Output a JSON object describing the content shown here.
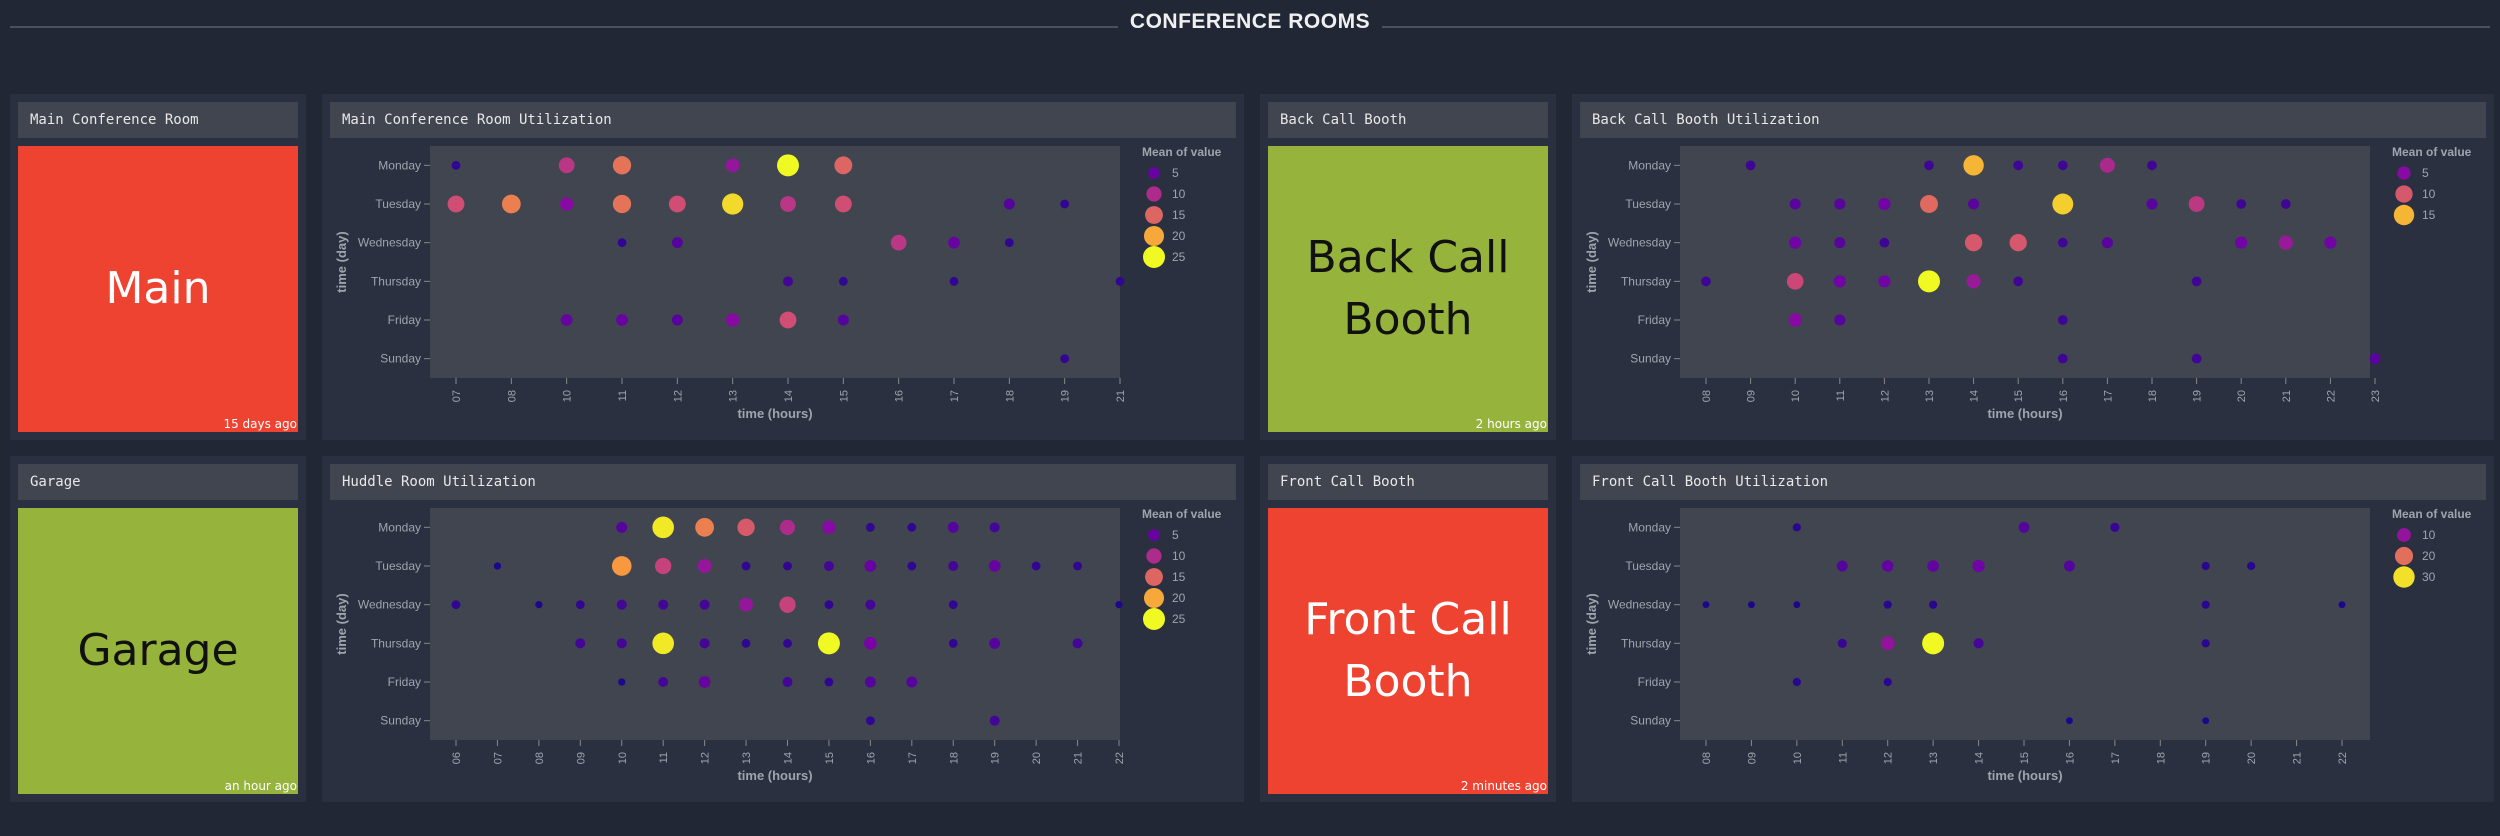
{
  "dashboard": {
    "section_title": "CONFERENCE ROOMS"
  },
  "rooms": [
    {
      "key": "main",
      "title": "Main Conference Room",
      "text_lines": [
        "Main"
      ],
      "updated": "15 days ago",
      "status_color": "#ef4331",
      "text_color": "#ffffff"
    },
    {
      "key": "back",
      "title": "Back Call Booth",
      "text_lines": [
        "Back Call",
        "Booth"
      ],
      "updated": "2 hours ago",
      "status_color": "#96b33c",
      "text_color": "#111111"
    },
    {
      "key": "garage",
      "title": "Garage",
      "text_lines": [
        "Garage"
      ],
      "updated": "an hour ago",
      "status_color": "#96b33c",
      "text_color": "#111111"
    },
    {
      "key": "front",
      "title": "Front Call Booth",
      "text_lines": [
        "Front Call",
        "Booth"
      ],
      "updated": "2 minutes ago",
      "status_color": "#ef4331",
      "text_color": "#ffffff"
    }
  ],
  "chart_data": [
    {
      "type": "scatter",
      "title": "Main Conference Room Utilization",
      "xlabel": "time (hours)",
      "ylabel": "time (day)",
      "x_ticks": [
        "07",
        "08",
        "10",
        "11",
        "12",
        "13",
        "14",
        "15",
        "16",
        "17",
        "18",
        "19",
        "21"
      ],
      "y_ticks": [
        "Monday",
        "Tuesday",
        "Wednesday",
        "Thursday",
        "Friday",
        "Sunday"
      ],
      "legend": {
        "title": "Mean of value",
        "entries": [
          5,
          10,
          15,
          20,
          25
        ],
        "placement": "right"
      },
      "vmax": 25,
      "points": [
        [
          "07",
          "Monday",
          2
        ],
        [
          "10",
          "Monday",
          11
        ],
        [
          "11",
          "Monday",
          16
        ],
        [
          "13",
          "Monday",
          8
        ],
        [
          "14",
          "Monday",
          25
        ],
        [
          "15",
          "Monday",
          15
        ],
        [
          "07",
          "Tuesday",
          13
        ],
        [
          "08",
          "Tuesday",
          17
        ],
        [
          "10",
          "Tuesday",
          7
        ],
        [
          "11",
          "Tuesday",
          16
        ],
        [
          "12",
          "Tuesday",
          13
        ],
        [
          "13",
          "Tuesday",
          23
        ],
        [
          "14",
          "Tuesday",
          11
        ],
        [
          "15",
          "Tuesday",
          13
        ],
        [
          "18",
          "Tuesday",
          4
        ],
        [
          "19",
          "Tuesday",
          2
        ],
        [
          "11",
          "Wednesday",
          2
        ],
        [
          "12",
          "Wednesday",
          4
        ],
        [
          "16",
          "Wednesday",
          11
        ],
        [
          "17",
          "Wednesday",
          5
        ],
        [
          "18",
          "Wednesday",
          2
        ],
        [
          "14",
          "Thursday",
          3
        ],
        [
          "15",
          "Thursday",
          2
        ],
        [
          "17",
          "Thursday",
          2
        ],
        [
          "21",
          "Thursday",
          2
        ],
        [
          "10",
          "Friday",
          5
        ],
        [
          "11",
          "Friday",
          5
        ],
        [
          "12",
          "Friday",
          4
        ],
        [
          "13",
          "Friday",
          7
        ],
        [
          "14",
          "Friday",
          13
        ],
        [
          "15",
          "Friday",
          4
        ],
        [
          "19",
          "Sunday",
          2
        ]
      ]
    },
    {
      "type": "scatter",
      "title": "Back Call Booth Utilization",
      "xlabel": "time (hours)",
      "ylabel": "time (day)",
      "x_ticks": [
        "08",
        "09",
        "10",
        "11",
        "12",
        "13",
        "14",
        "15",
        "16",
        "17",
        "18",
        "19",
        "20",
        "21",
        "22",
        "23"
      ],
      "y_ticks": [
        "Monday",
        "Tuesday",
        "Wednesday",
        "Thursday",
        "Friday",
        "Sunday"
      ],
      "legend": {
        "title": "Mean of value",
        "entries": [
          5,
          10,
          15
        ],
        "placement": "right"
      },
      "vmax": 18,
      "points": [
        [
          "09",
          "Monday",
          2
        ],
        [
          "13",
          "Monday",
          2
        ],
        [
          "14",
          "Monday",
          15
        ],
        [
          "15",
          "Monday",
          2
        ],
        [
          "16",
          "Monday",
          2
        ],
        [
          "17",
          "Monday",
          7
        ],
        [
          "18",
          "Monday",
          2
        ],
        [
          "10",
          "Tuesday",
          3
        ],
        [
          "11",
          "Tuesday",
          3
        ],
        [
          "12",
          "Tuesday",
          4
        ],
        [
          "13",
          "Tuesday",
          11
        ],
        [
          "14",
          "Tuesday",
          3
        ],
        [
          "16",
          "Tuesday",
          16
        ],
        [
          "18",
          "Tuesday",
          3
        ],
        [
          "19",
          "Tuesday",
          8
        ],
        [
          "20",
          "Tuesday",
          2
        ],
        [
          "21",
          "Tuesday",
          2
        ],
        [
          "10",
          "Wednesday",
          4
        ],
        [
          "11",
          "Wednesday",
          3
        ],
        [
          "12",
          "Wednesday",
          2
        ],
        [
          "14",
          "Wednesday",
          10
        ],
        [
          "15",
          "Wednesday",
          10
        ],
        [
          "16",
          "Wednesday",
          2
        ],
        [
          "17",
          "Wednesday",
          3
        ],
        [
          "20",
          "Wednesday",
          4
        ],
        [
          "21",
          "Wednesday",
          6
        ],
        [
          "22",
          "Wednesday",
          4
        ],
        [
          "08",
          "Thursday",
          2
        ],
        [
          "10",
          "Thursday",
          9
        ],
        [
          "11",
          "Thursday",
          4
        ],
        [
          "12",
          "Thursday",
          4
        ],
        [
          "13",
          "Thursday",
          18
        ],
        [
          "14",
          "Thursday",
          6
        ],
        [
          "15",
          "Thursday",
          2
        ],
        [
          "19",
          "Thursday",
          2
        ],
        [
          "10",
          "Friday",
          5
        ],
        [
          "11",
          "Friday",
          3
        ],
        [
          "16",
          "Friday",
          2
        ],
        [
          "16",
          "Sunday",
          2
        ],
        [
          "19",
          "Sunday",
          2
        ],
        [
          "23",
          "Sunday",
          3
        ]
      ]
    },
    {
      "type": "scatter",
      "title": "Huddle Room Utilization",
      "xlabel": "time (hours)",
      "ylabel": "time (day)",
      "x_ticks": [
        "06",
        "07",
        "08",
        "09",
        "10",
        "11",
        "12",
        "13",
        "14",
        "15",
        "16",
        "17",
        "18",
        "19",
        "20",
        "21",
        "22"
      ],
      "y_ticks": [
        "Monday",
        "Tuesday",
        "Wednesday",
        "Thursday",
        "Friday",
        "Sunday"
      ],
      "legend": {
        "title": "Mean of value",
        "entries": [
          5,
          10,
          15,
          20,
          25
        ],
        "placement": "right"
      },
      "vmax": 25,
      "points": [
        [
          "10",
          "Monday",
          4
        ],
        [
          "11",
          "Monday",
          24
        ],
        [
          "12",
          "Monday",
          17
        ],
        [
          "13",
          "Monday",
          14
        ],
        [
          "14",
          "Monday",
          10
        ],
        [
          "15",
          "Monday",
          7
        ],
        [
          "16",
          "Monday",
          2
        ],
        [
          "17",
          "Monday",
          2
        ],
        [
          "18",
          "Monday",
          4
        ],
        [
          "19",
          "Monday",
          3
        ],
        [
          "07",
          "Tuesday",
          1
        ],
        [
          "10",
          "Tuesday",
          19
        ],
        [
          "11",
          "Tuesday",
          12
        ],
        [
          "12",
          "Tuesday",
          8
        ],
        [
          "13",
          "Tuesday",
          2
        ],
        [
          "14",
          "Tuesday",
          2
        ],
        [
          "15",
          "Tuesday",
          3
        ],
        [
          "16",
          "Tuesday",
          5
        ],
        [
          "17",
          "Tuesday",
          2
        ],
        [
          "18",
          "Tuesday",
          3
        ],
        [
          "19",
          "Tuesday",
          5
        ],
        [
          "20",
          "Tuesday",
          2
        ],
        [
          "21",
          "Tuesday",
          2
        ],
        [
          "06",
          "Wednesday",
          2
        ],
        [
          "08",
          "Wednesday",
          1
        ],
        [
          "09",
          "Wednesday",
          2
        ],
        [
          "10",
          "Wednesday",
          3
        ],
        [
          "11",
          "Wednesday",
          3
        ],
        [
          "12",
          "Wednesday",
          3
        ],
        [
          "13",
          "Wednesday",
          8
        ],
        [
          "14",
          "Wednesday",
          12
        ],
        [
          "15",
          "Wednesday",
          2
        ],
        [
          "16",
          "Wednesday",
          3
        ],
        [
          "18",
          "Wednesday",
          2
        ],
        [
          "22",
          "Wednesday",
          1
        ],
        [
          "09",
          "Thursday",
          3
        ],
        [
          "10",
          "Thursday",
          3
        ],
        [
          "11",
          "Thursday",
          24
        ],
        [
          "12",
          "Thursday",
          3
        ],
        [
          "13",
          "Thursday",
          2
        ],
        [
          "14",
          "Thursday",
          2
        ],
        [
          "15",
          "Thursday",
          25
        ],
        [
          "16",
          "Thursday",
          6
        ],
        [
          "18",
          "Thursday",
          2
        ],
        [
          "19",
          "Thursday",
          4
        ],
        [
          "21",
          "Thursday",
          3
        ],
        [
          "10",
          "Friday",
          1
        ],
        [
          "11",
          "Friday",
          3
        ],
        [
          "12",
          "Friday",
          5
        ],
        [
          "14",
          "Friday",
          3
        ],
        [
          "15",
          "Friday",
          2
        ],
        [
          "16",
          "Friday",
          4
        ],
        [
          "17",
          "Friday",
          4
        ],
        [
          "16",
          "Sunday",
          2
        ],
        [
          "19",
          "Sunday",
          3
        ]
      ]
    },
    {
      "type": "scatter",
      "title": "Front Call Booth Utilization",
      "xlabel": "time (hours)",
      "ylabel": "time (day)",
      "x_ticks": [
        "08",
        "09",
        "10",
        "11",
        "12",
        "13",
        "14",
        "15",
        "16",
        "17",
        "18",
        "19",
        "20",
        "21",
        "22"
      ],
      "y_ticks": [
        "Monday",
        "Tuesday",
        "Wednesday",
        "Thursday",
        "Friday",
        "Sunday"
      ],
      "legend": {
        "title": "Mean of value",
        "entries": [
          10,
          20,
          30
        ],
        "placement": "right"
      },
      "vmax": 32,
      "points": [
        [
          "10",
          "Monday",
          2
        ],
        [
          "15",
          "Monday",
          5
        ],
        [
          "17",
          "Monday",
          3
        ],
        [
          "11",
          "Tuesday",
          5
        ],
        [
          "12",
          "Tuesday",
          6
        ],
        [
          "13",
          "Tuesday",
          6
        ],
        [
          "14",
          "Tuesday",
          7
        ],
        [
          "16",
          "Tuesday",
          5
        ],
        [
          "19",
          "Tuesday",
          2
        ],
        [
          "20",
          "Tuesday",
          2
        ],
        [
          "08",
          "Wednesday",
          1
        ],
        [
          "09",
          "Wednesday",
          1
        ],
        [
          "10",
          "Wednesday",
          1
        ],
        [
          "12",
          "Wednesday",
          2
        ],
        [
          "13",
          "Wednesday",
          2
        ],
        [
          "19",
          "Wednesday",
          2
        ],
        [
          "22",
          "Wednesday",
          1
        ],
        [
          "11",
          "Thursday",
          3
        ],
        [
          "12",
          "Thursday",
          10
        ],
        [
          "13",
          "Thursday",
          32
        ],
        [
          "14",
          "Thursday",
          4
        ],
        [
          "19",
          "Thursday",
          2
        ],
        [
          "10",
          "Friday",
          2
        ],
        [
          "12",
          "Friday",
          2
        ],
        [
          "16",
          "Sunday",
          1
        ],
        [
          "19",
          "Sunday",
          1
        ]
      ]
    }
  ]
}
